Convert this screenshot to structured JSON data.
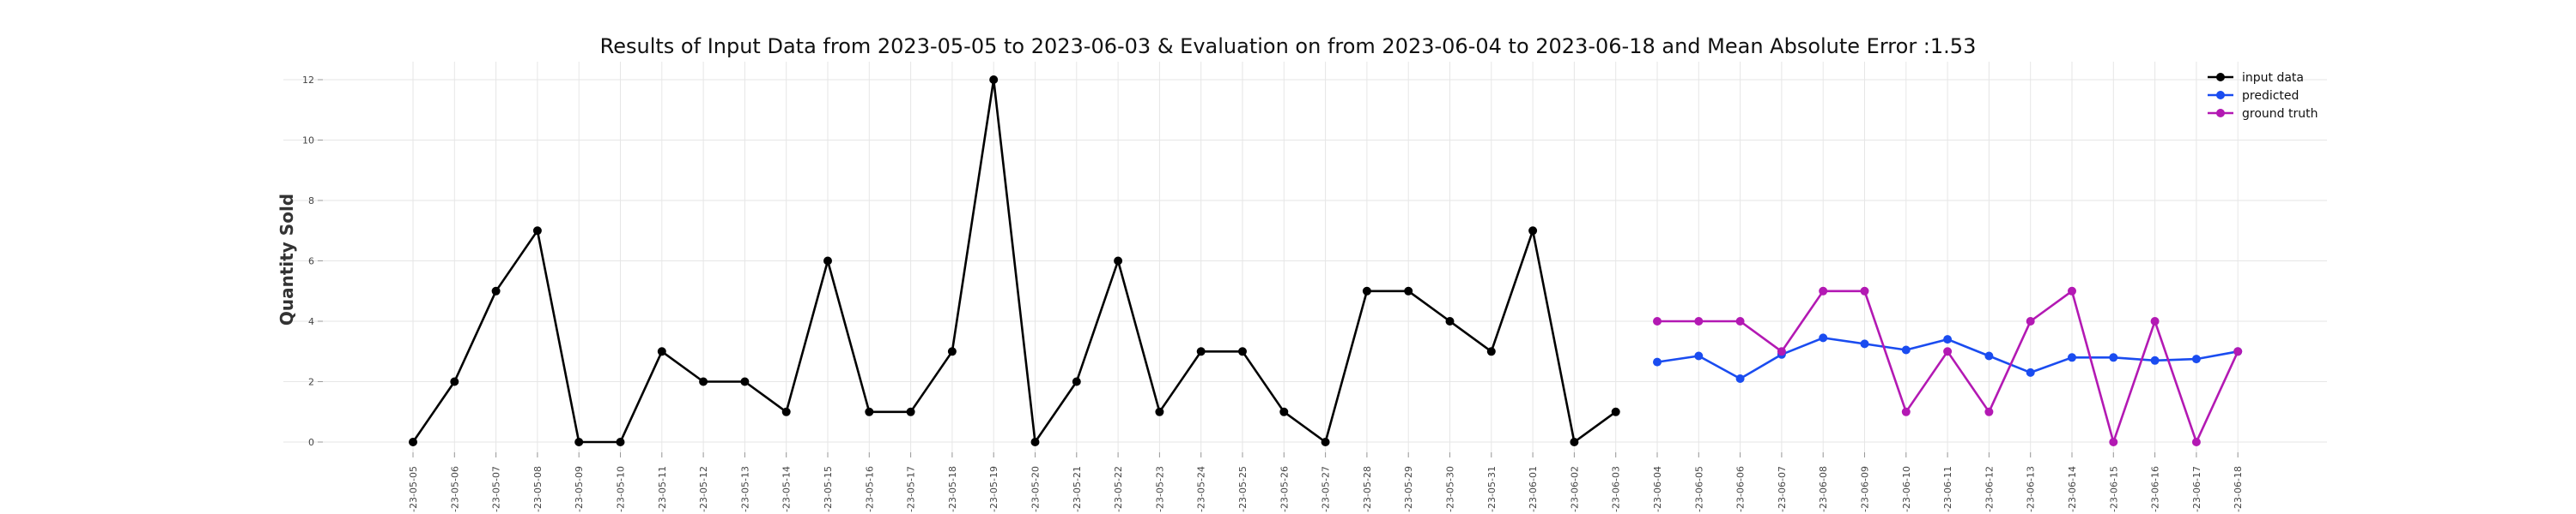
{
  "chart_data": {
    "type": "line",
    "title": "Results of Input Data from 2023-05-05 to 2023-06-03 & Evaluation on from 2023-06-04 to 2023-06-18 and Mean Absolute Error  :1.53",
    "ylabel": "Quantity Sold",
    "xlabel": "",
    "ylim": [
      0,
      12
    ],
    "yticks": [
      0,
      2,
      4,
      6,
      8,
      10,
      12
    ],
    "grid": true,
    "legend_position": "top-right",
    "x_tick_labels": [
      "-23-05-05",
      "-23-05-06",
      "-23-05-07",
      "-23-05-08",
      "-23-05-09",
      "-23-05-10",
      "-23-05-11",
      "-23-05-12",
      "-23-05-13",
      "-23-05-14",
      "-23-05-15",
      "-23-05-16",
      "-23-05-17",
      "-23-05-18",
      "-23-05-19",
      "-23-05-20",
      "-23-05-21",
      "-23-05-22",
      "-23-05-23",
      "-23-05-24",
      "-23-05-25",
      "-23-05-26",
      "-23-05-27",
      "-23-05-28",
      "-23-05-29",
      "-23-05-30",
      "-23-05-31",
      "-23-06-01",
      "-23-06-02",
      "-23-06-03",
      "-23-06-04",
      "-23-06-05",
      "-23-06-06",
      "-23-06-07",
      "-23-06-08",
      "-23-06-09",
      "-23-06-10",
      "-23-06-11",
      "-23-06-12",
      "-23-06-13",
      "-23-06-14",
      "-23-06-15",
      "-23-06-16",
      "-23-06-17",
      "-23-06-18"
    ],
    "series": [
      {
        "name": "input data",
        "color": "#000000",
        "x": [
          "2023-05-05",
          "2023-05-06",
          "2023-05-07",
          "2023-05-08",
          "2023-05-09",
          "2023-05-10",
          "2023-05-11",
          "2023-05-12",
          "2023-05-13",
          "2023-05-14",
          "2023-05-15",
          "2023-05-16",
          "2023-05-17",
          "2023-05-18",
          "2023-05-19",
          "2023-05-20",
          "2023-05-21",
          "2023-05-22",
          "2023-05-23",
          "2023-05-24",
          "2023-05-25",
          "2023-05-26",
          "2023-05-27",
          "2023-05-28",
          "2023-05-29",
          "2023-05-30",
          "2023-05-31",
          "2023-06-01",
          "2023-06-02",
          "2023-06-03"
        ],
        "values": [
          0,
          2,
          5,
          7,
          0,
          0,
          3,
          2,
          2,
          1,
          6,
          1,
          1,
          3,
          12,
          0,
          2,
          6,
          1,
          3,
          3,
          1,
          0,
          5,
          5,
          4,
          3,
          7,
          0,
          1
        ]
      },
      {
        "name": "predicted",
        "color": "#1a4cf0",
        "x": [
          "2023-06-04",
          "2023-06-05",
          "2023-06-06",
          "2023-06-07",
          "2023-06-08",
          "2023-06-09",
          "2023-06-10",
          "2023-06-11",
          "2023-06-12",
          "2023-06-13",
          "2023-06-14",
          "2023-06-15",
          "2023-06-16",
          "2023-06-17",
          "2023-06-18"
        ],
        "values": [
          2.65,
          2.85,
          2.1,
          2.9,
          3.45,
          3.25,
          3.05,
          3.4,
          2.85,
          2.3,
          2.8,
          2.8,
          2.7,
          2.75,
          3.0
        ]
      },
      {
        "name": "ground truth",
        "color": "#b319b3",
        "x": [
          "2023-06-04",
          "2023-06-05",
          "2023-06-06",
          "2023-06-07",
          "2023-06-08",
          "2023-06-09",
          "2023-06-10",
          "2023-06-11",
          "2023-06-12",
          "2023-06-13",
          "2023-06-14",
          "2023-06-15",
          "2023-06-16",
          "2023-06-17",
          "2023-06-18"
        ],
        "values": [
          4,
          4,
          4,
          3,
          5,
          5,
          1,
          3,
          1,
          4,
          5,
          0,
          4,
          0,
          3
        ]
      }
    ]
  }
}
